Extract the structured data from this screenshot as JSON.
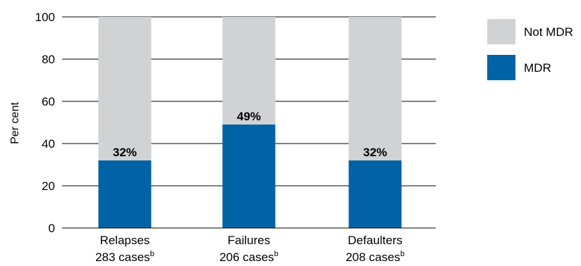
{
  "chart_data": {
    "type": "bar",
    "stacked": true,
    "categories": [
      "Relapses",
      "Failures",
      "Defaulters"
    ],
    "category_cases": [
      {
        "count_text": "283 cases",
        "superscript": "b"
      },
      {
        "count_text": "206 cases",
        "superscript": "b"
      },
      {
        "count_text": "208 cases",
        "superscript": "b"
      }
    ],
    "series": [
      {
        "name": "MDR",
        "values": [
          32,
          49,
          32
        ],
        "color": "#0063a6"
      },
      {
        "name": "Not MDR",
        "values": [
          68,
          51,
          68
        ],
        "color": "#d1d2d4"
      }
    ],
    "data_labels": [
      "32%",
      "49%",
      "32%"
    ],
    "ylabel": "Per cent",
    "ylim": [
      0,
      100
    ],
    "yticks": [
      0,
      20,
      40,
      60,
      80,
      100
    ],
    "grid": true,
    "legend_position": "right",
    "legend": [
      {
        "label": "Not MDR",
        "color": "#d1d2d4"
      },
      {
        "label": "MDR",
        "color": "#0063a6"
      }
    ]
  }
}
